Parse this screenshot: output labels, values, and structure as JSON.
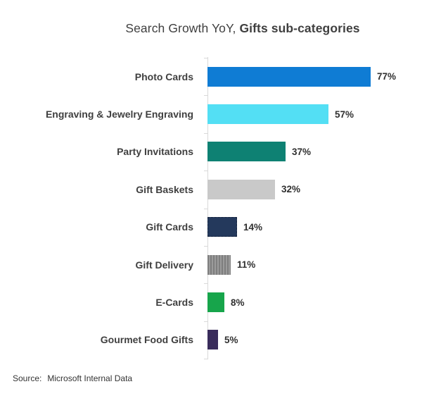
{
  "title": {
    "part1": "Search Growth YoY, ",
    "part2": "Gifts sub-categories"
  },
  "source": {
    "label": "Source:",
    "text": "Microsoft Internal Data"
  },
  "chart_data": {
    "type": "bar",
    "orientation": "horizontal",
    "title": "Search Growth YoY, Gifts sub-categories",
    "xlabel": "",
    "ylabel": "",
    "xlim": [
      0,
      97
    ],
    "grid": false,
    "legend": false,
    "axis_color": "#d9d9d9",
    "categories": [
      "Photo Cards",
      "Engraving & Jewelry Engraving",
      "Party Invitations",
      "Gift Baskets",
      "Gift Cards",
      "Gift Delivery",
      "E-Cards",
      "Gourmet Food Gifts"
    ],
    "values": [
      77,
      57,
      37,
      32,
      14,
      11,
      8,
      5
    ],
    "value_labels": [
      "77%",
      "57%",
      "37%",
      "32%",
      "14%",
      "11%",
      "8%",
      "5%"
    ],
    "colors": [
      "#0F7CD4",
      "#53DFF4",
      "#0E8173",
      "#C9C9C9",
      "#24395C",
      "#8A8A8A",
      "#17A54B",
      "#392C5B"
    ],
    "patterns": [
      null,
      null,
      null,
      null,
      "dashed-outline",
      "vertical-stripes",
      null,
      null
    ],
    "pattern_stripe_colors": [
      "#7E7E7E",
      "#9B9B9B"
    ]
  }
}
